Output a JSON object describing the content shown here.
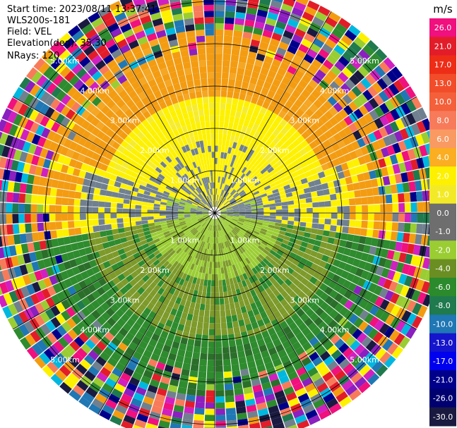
{
  "header": {
    "start_time": "Start time: 2023/08/11 13:37:41",
    "instrument": "WLS200s-181",
    "field": "Field: VEL",
    "elevation": "Elevation(deg): 35.30",
    "nrays": "NRays: 120"
  },
  "colorbar": {
    "unit": "m/s",
    "ticks": [
      "26.0",
      "21.0",
      "17.0",
      "13.0",
      "10.0",
      "8.0",
      "6.0",
      "4.0",
      "2.0",
      "1.0",
      "0.0",
      "-1.0",
      "-2.0",
      "-4.0",
      "-6.0",
      "-8.0",
      "-10.0",
      "-13.0",
      "-17.0",
      "-21.0",
      "-26.0",
      "-30.0"
    ],
    "colors": [
      "#f0107e",
      "#e21d29",
      "#ee2d17",
      "#f24d2a",
      "#f4603a",
      "#f77b5a",
      "#f99a63",
      "#fbae21",
      "#fdf100",
      "#f3ea27",
      "#6e6e6e",
      "#6e6e6e",
      "#9acd32",
      "#6b8e23",
      "#2b8a2b",
      "#1f7a4d",
      "#1f77b4",
      "#1515cc",
      "#0000ee",
      "#00008b",
      "#000070",
      "#1a1a40"
    ]
  },
  "chart_data": {
    "type": "heatmap",
    "projection": "polar-ppi",
    "field": "VEL",
    "rays": 120,
    "range_ring_labels": [
      "1.00km",
      "2.00km",
      "3.00km",
      "4.00km",
      "5.00km"
    ],
    "range_rings_km": [
      1,
      2,
      3,
      4,
      5
    ],
    "max_range_km": 5.5,
    "spokes_deg": [
      0,
      30,
      60,
      90,
      120,
      150,
      180,
      210,
      240,
      270,
      300,
      330
    ],
    "colorbar_range": [
      -30.0,
      26.0
    ],
    "unit": "m/s"
  }
}
